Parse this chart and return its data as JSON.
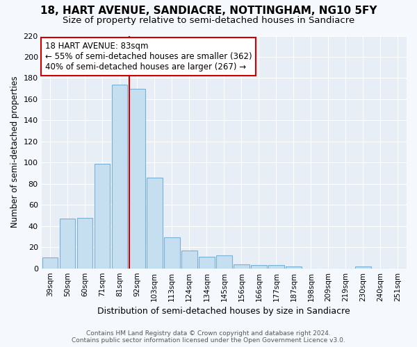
{
  "title1": "18, HART AVENUE, SANDIACRE, NOTTINGHAM, NG10 5FY",
  "title2": "Size of property relative to semi-detached houses in Sandiacre",
  "xlabel": "Distribution of semi-detached houses by size in Sandiacre",
  "ylabel": "Number of semi-detached properties",
  "categories": [
    "39sqm",
    "50sqm",
    "60sqm",
    "71sqm",
    "81sqm",
    "92sqm",
    "103sqm",
    "113sqm",
    "124sqm",
    "134sqm",
    "145sqm",
    "156sqm",
    "166sqm",
    "177sqm",
    "187sqm",
    "198sqm",
    "209sqm",
    "219sqm",
    "230sqm",
    "240sqm",
    "251sqm"
  ],
  "values": [
    10,
    47,
    48,
    99,
    174,
    170,
    86,
    29,
    17,
    11,
    12,
    4,
    3,
    3,
    2,
    0,
    0,
    0,
    2,
    0,
    0
  ],
  "bar_color": "#c5dff0",
  "bar_edge_color": "#7ab0d4",
  "highlight_line_color": "#cc0000",
  "annotation_title": "18 HART AVENUE: 83sqm",
  "annotation_line1": "← 55% of semi-detached houses are smaller (362)",
  "annotation_line2": "40% of semi-detached houses are larger (267) →",
  "ylim": [
    0,
    220
  ],
  "yticks": [
    0,
    20,
    40,
    60,
    80,
    100,
    120,
    140,
    160,
    180,
    200,
    220
  ],
  "footer1": "Contains HM Land Registry data © Crown copyright and database right 2024.",
  "footer2": "Contains public sector information licensed under the Open Government Licence v3.0.",
  "plot_bg_color": "#e8eef6",
  "fig_bg_color": "#f5f8fc",
  "grid_color": "#ffffff"
}
